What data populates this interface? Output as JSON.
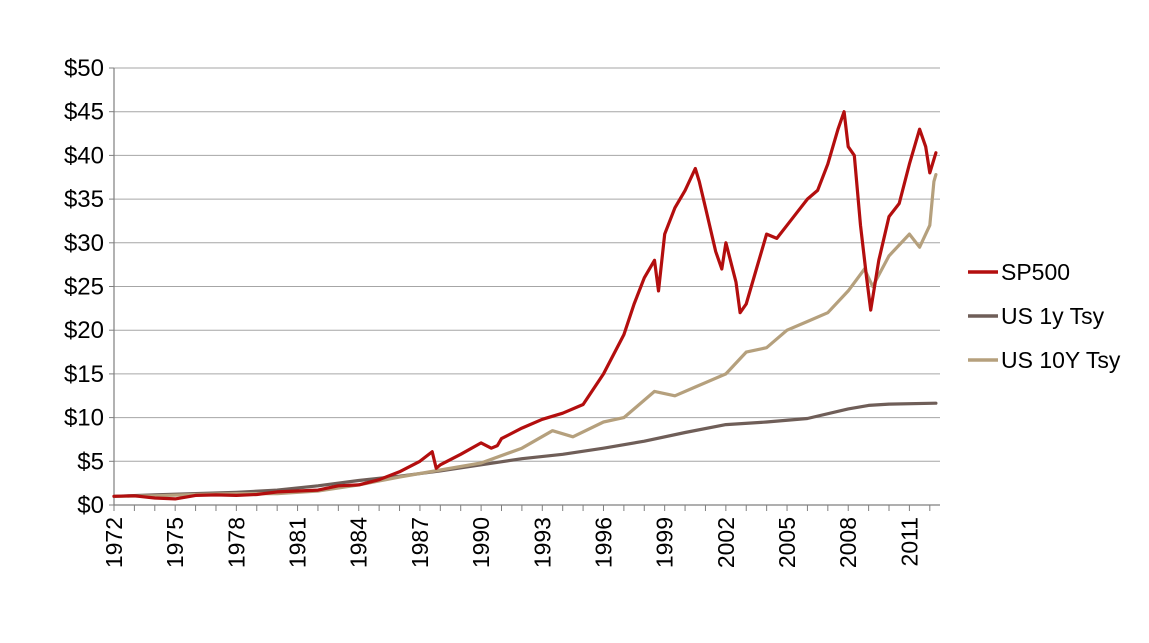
{
  "chart_data": {
    "type": "line",
    "title": "",
    "xlabel": "",
    "ylabel": "",
    "xlim": [
      1972,
      2012.5
    ],
    "ylim": [
      0,
      50
    ],
    "grid": true,
    "legend_position": "right",
    "y_ticks": [
      {
        "value": 0,
        "label": "$0"
      },
      {
        "value": 5,
        "label": "$5"
      },
      {
        "value": 10,
        "label": "$10"
      },
      {
        "value": 15,
        "label": "$15"
      },
      {
        "value": 20,
        "label": "$20"
      },
      {
        "value": 25,
        "label": "$25"
      },
      {
        "value": 30,
        "label": "$30"
      },
      {
        "value": 35,
        "label": "$35"
      },
      {
        "value": 40,
        "label": "$40"
      },
      {
        "value": 45,
        "label": "$45"
      },
      {
        "value": 50,
        "label": "$50"
      }
    ],
    "x_ticks": [
      {
        "value": 1972,
        "label": "1972"
      },
      {
        "value": 1975,
        "label": "1975"
      },
      {
        "value": 1978,
        "label": "1978"
      },
      {
        "value": 1981,
        "label": "1981"
      },
      {
        "value": 1984,
        "label": "1984"
      },
      {
        "value": 1987,
        "label": "1987"
      },
      {
        "value": 1990,
        "label": "1990"
      },
      {
        "value": 1993,
        "label": "1993"
      },
      {
        "value": 1996,
        "label": "1996"
      },
      {
        "value": 1999,
        "label": "1999"
      },
      {
        "value": 2002,
        "label": "2002"
      },
      {
        "value": 2005,
        "label": "2005"
      },
      {
        "value": 2008,
        "label": "2008"
      },
      {
        "value": 2011,
        "label": "2011"
      }
    ],
    "series": [
      {
        "name": "SP500",
        "color": "#b30e0e",
        "points": [
          [
            1972,
            1.0
          ],
          [
            1973,
            1.05
          ],
          [
            1974,
            0.8
          ],
          [
            1975,
            0.7
          ],
          [
            1976,
            1.1
          ],
          [
            1977,
            1.15
          ],
          [
            1978,
            1.1
          ],
          [
            1979,
            1.2
          ],
          [
            1980,
            1.5
          ],
          [
            1981,
            1.6
          ],
          [
            1982,
            1.7
          ],
          [
            1983,
            2.2
          ],
          [
            1984,
            2.3
          ],
          [
            1985,
            2.9
          ],
          [
            1986,
            3.8
          ],
          [
            1987,
            5.0
          ],
          [
            1987.6,
            6.1
          ],
          [
            1987.8,
            4.2
          ],
          [
            1988,
            4.6
          ],
          [
            1989,
            5.8
          ],
          [
            1990,
            7.1
          ],
          [
            1990.5,
            6.5
          ],
          [
            1990.8,
            6.8
          ],
          [
            1991,
            7.6
          ],
          [
            1992,
            8.8
          ],
          [
            1993,
            9.8
          ],
          [
            1994,
            10.5
          ],
          [
            1995,
            11.5
          ],
          [
            1996,
            15.0
          ],
          [
            1997,
            19.5
          ],
          [
            1997.5,
            23.0
          ],
          [
            1998,
            26.0
          ],
          [
            1998.5,
            28.0
          ],
          [
            1998.7,
            24.5
          ],
          [
            1999,
            31.0
          ],
          [
            1999.5,
            34.0
          ],
          [
            2000,
            36.0
          ],
          [
            2000.5,
            38.5
          ],
          [
            2000.7,
            37.0
          ],
          [
            2001,
            34.0
          ],
          [
            2001.5,
            29.0
          ],
          [
            2001.8,
            27.0
          ],
          [
            2002,
            30.0
          ],
          [
            2002.5,
            25.5
          ],
          [
            2002.7,
            22.0
          ],
          [
            2003,
            23.0
          ],
          [
            2003.5,
            27.0
          ],
          [
            2004,
            31.0
          ],
          [
            2004.5,
            30.5
          ],
          [
            2005,
            32.0
          ],
          [
            2005.5,
            33.5
          ],
          [
            2006,
            35.0
          ],
          [
            2006.5,
            36.0
          ],
          [
            2007,
            39.0
          ],
          [
            2007.5,
            43.0
          ],
          [
            2007.8,
            45.0
          ],
          [
            2008,
            41.0
          ],
          [
            2008.3,
            40.0
          ],
          [
            2008.6,
            32.0
          ],
          [
            2008.9,
            26.0
          ],
          [
            2009.1,
            22.3
          ],
          [
            2009.5,
            28.0
          ],
          [
            2010,
            33.0
          ],
          [
            2010.5,
            34.5
          ],
          [
            2011,
            39.0
          ],
          [
            2011.5,
            43.0
          ],
          [
            2011.8,
            41.0
          ],
          [
            2012,
            38.0
          ],
          [
            2012.3,
            40.3
          ]
        ]
      },
      {
        "name": "US 1y Tsy",
        "color": "#6f5e58",
        "points": [
          [
            1972,
            1.0
          ],
          [
            1974,
            1.15
          ],
          [
            1976,
            1.3
          ],
          [
            1978,
            1.45
          ],
          [
            1980,
            1.7
          ],
          [
            1982,
            2.2
          ],
          [
            1984,
            2.8
          ],
          [
            1986,
            3.3
          ],
          [
            1988,
            3.9
          ],
          [
            1990,
            4.6
          ],
          [
            1992,
            5.3
          ],
          [
            1994,
            5.8
          ],
          [
            1996,
            6.5
          ],
          [
            1998,
            7.3
          ],
          [
            2000,
            8.3
          ],
          [
            2002,
            9.2
          ],
          [
            2004,
            9.5
          ],
          [
            2006,
            9.9
          ],
          [
            2008,
            11.0
          ],
          [
            2009,
            11.4
          ],
          [
            2010,
            11.55
          ],
          [
            2012.3,
            11.65
          ]
        ]
      },
      {
        "name": "US 10Y Tsy",
        "color": "#b5a07d",
        "points": [
          [
            1972,
            1.0
          ],
          [
            1974,
            1.05
          ],
          [
            1976,
            1.2
          ],
          [
            1978,
            1.3
          ],
          [
            1980,
            1.3
          ],
          [
            1982,
            1.6
          ],
          [
            1984,
            2.3
          ],
          [
            1986,
            3.2
          ],
          [
            1988,
            4.0
          ],
          [
            1990,
            4.8
          ],
          [
            1992,
            6.5
          ],
          [
            1993.5,
            8.5
          ],
          [
            1994.5,
            7.8
          ],
          [
            1996,
            9.5
          ],
          [
            1997,
            10.0
          ],
          [
            1998.5,
            13.0
          ],
          [
            1999.5,
            12.5
          ],
          [
            2000.5,
            13.5
          ],
          [
            2002,
            15.0
          ],
          [
            2003,
            17.5
          ],
          [
            2004,
            18.0
          ],
          [
            2005,
            20.0
          ],
          [
            2006,
            21.0
          ],
          [
            2007,
            22.0
          ],
          [
            2008,
            24.5
          ],
          [
            2008.8,
            27.0
          ],
          [
            2009.2,
            25.0
          ],
          [
            2010,
            28.5
          ],
          [
            2011,
            31.0
          ],
          [
            2011.5,
            29.5
          ],
          [
            2012,
            32.0
          ],
          [
            2012.2,
            37.0
          ],
          [
            2012.3,
            37.8
          ]
        ]
      }
    ]
  }
}
